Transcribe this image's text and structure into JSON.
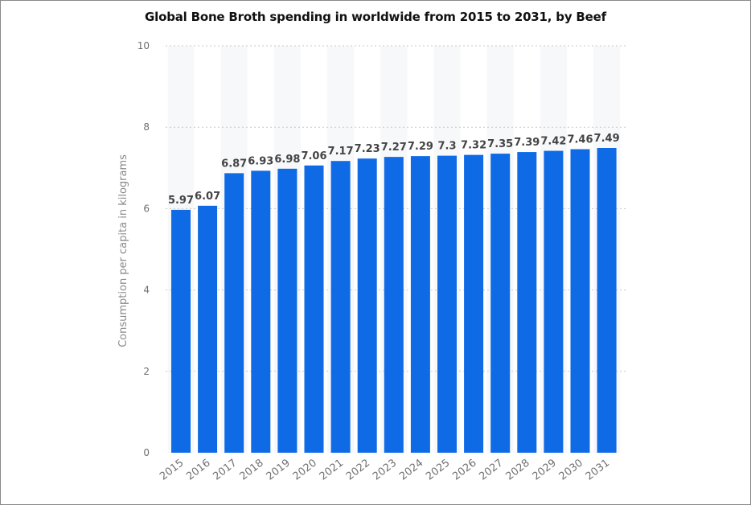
{
  "chart_data": {
    "type": "bar",
    "title": "Global Bone Broth spending in worldwide from 2015 to 2031, by Beef",
    "ylabel": "Consumption per capita in kilograms",
    "xlabel": "",
    "ylim": [
      0,
      10
    ],
    "yticks": [
      0,
      2,
      4,
      6,
      8,
      10
    ],
    "grid": true,
    "bar_color": "#0f6ae6",
    "categories": [
      "2015",
      "2016",
      "2017",
      "2018",
      "2019",
      "2020",
      "2021",
      "2022",
      "2023",
      "2024",
      "2025",
      "2026",
      "2027",
      "2028",
      "2029",
      "2030",
      "2031"
    ],
    "values": [
      5.97,
      6.07,
      6.87,
      6.93,
      6.98,
      7.06,
      7.17,
      7.23,
      7.27,
      7.29,
      7.3,
      7.32,
      7.35,
      7.39,
      7.42,
      7.46,
      7.49
    ],
    "labels": [
      "5.97",
      "6.07",
      "6.87",
      "6.93",
      "6.98",
      "7.06",
      "7.17",
      "7.23",
      "7.27",
      "7.29",
      "7.3",
      "7.32",
      "7.35",
      "7.39",
      "7.42",
      "7.46",
      "7.49"
    ]
  }
}
